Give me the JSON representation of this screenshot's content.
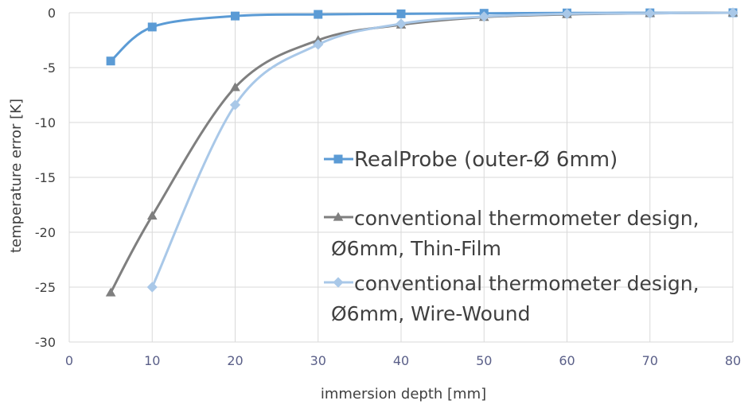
{
  "chart_data": {
    "type": "line",
    "title": "",
    "xlabel": "immersion depth [mm]",
    "ylabel": "temperature error [K]",
    "xlim": [
      0,
      80
    ],
    "ylim": [
      -30,
      0
    ],
    "x_ticks": [
      0,
      10,
      20,
      30,
      40,
      50,
      60,
      70,
      80
    ],
    "y_ticks": [
      0,
      -5,
      -10,
      -15,
      -20,
      -25,
      -30
    ],
    "grid": true,
    "legend_position": "right",
    "series": [
      {
        "name": "RealProbe (outer-Ø 6mm)",
        "color": "#5b9bd5",
        "marker": "square",
        "x": [
          5,
          10,
          20,
          30,
          40,
          50,
          60,
          70,
          80
        ],
        "y": [
          -4.4,
          -1.3,
          -0.3,
          -0.15,
          -0.1,
          -0.05,
          -0.02,
          -0.01,
          0
        ]
      },
      {
        "name": "conventional thermometer design, Ø6mm, Thin-Film",
        "color": "#7f7f7f",
        "marker": "triangle",
        "x": [
          5,
          10,
          20,
          30,
          40,
          50,
          60,
          70,
          80
        ],
        "y": [
          -25.5,
          -18.5,
          -6.8,
          -2.5,
          -1.1,
          -0.4,
          -0.15,
          -0.05,
          0
        ]
      },
      {
        "name": "conventional thermometer design, Ø6mm, Wire-Wound",
        "color": "#a9c8e8",
        "marker": "diamond",
        "x": [
          10,
          20,
          30,
          40,
          50,
          60,
          70,
          80
        ],
        "y": [
          -25,
          -8.4,
          -2.9,
          -1.0,
          -0.35,
          -0.1,
          -0.05,
          0
        ]
      }
    ]
  }
}
